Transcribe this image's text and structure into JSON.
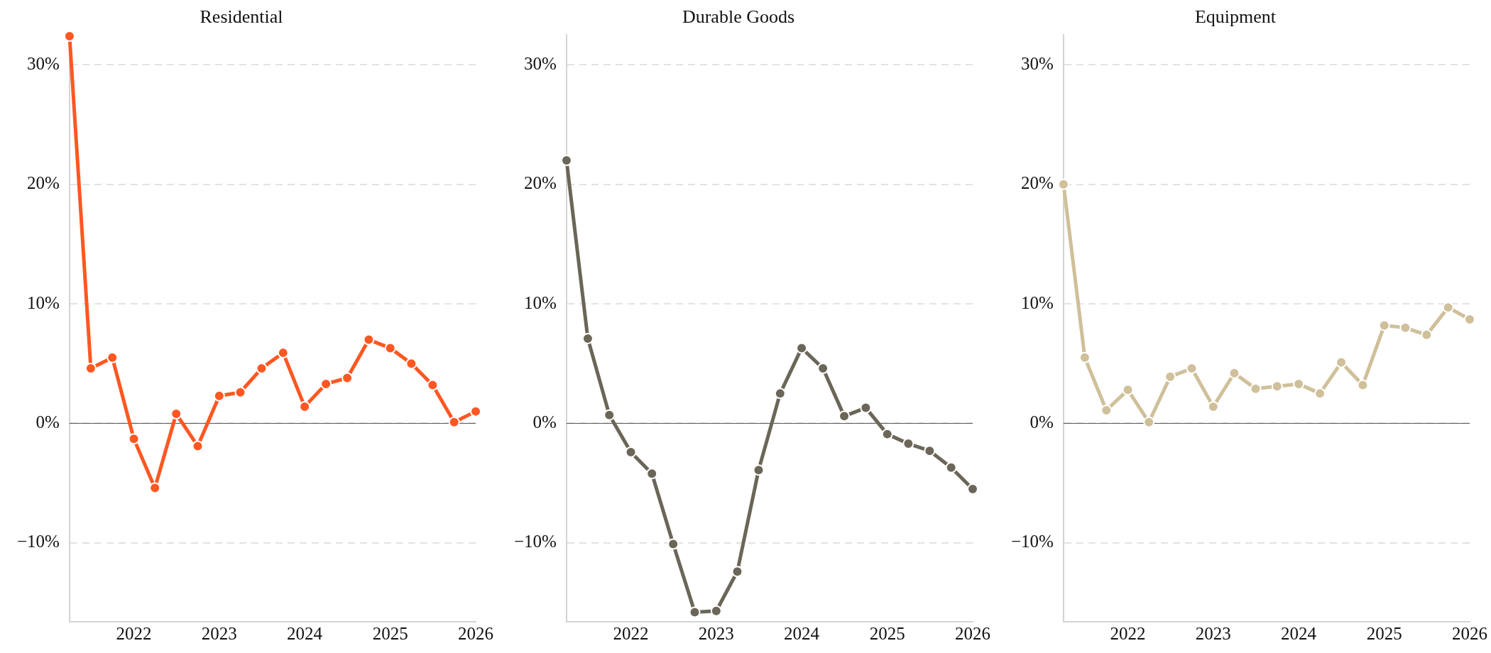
{
  "chart_data": [
    {
      "type": "line",
      "title": "Residential",
      "x": [
        "2021-04",
        "2021-07",
        "2021-10",
        "2022-01",
        "2022-04",
        "2022-07",
        "2022-10",
        "2023-01",
        "2023-04",
        "2023-07",
        "2023-10",
        "2024-01",
        "2024-04",
        "2024-07",
        "2024-10",
        "2025-01",
        "2025-04",
        "2025-07",
        "2025-10",
        "2026-01"
      ],
      "series": [
        {
          "color": "#ff5722",
          "values": [
            32.4,
            4.6,
            5.5,
            -1.3,
            -5.4,
            0.8,
            -1.9,
            2.3,
            2.6,
            4.6,
            5.9,
            1.4,
            3.3,
            3.8,
            7.0,
            6.3,
            5.0,
            3.2,
            0.1,
            1.0
          ]
        }
      ],
      "xlim": [
        "2021-04",
        "2026-01"
      ],
      "xticks": [
        "2022",
        "2023",
        "2024",
        "2025",
        "2026"
      ],
      "ylim": [
        -16.6,
        32.5
      ],
      "yticks": [
        {
          "value": -10,
          "label": "−10%"
        },
        {
          "value": 0,
          "label": "0%"
        },
        {
          "value": 10,
          "label": "10%"
        },
        {
          "value": 20,
          "label": "20%"
        },
        {
          "value": 30,
          "label": "30%"
        }
      ],
      "grid": "y",
      "marker": "circle",
      "line_style": "solid",
      "ref_lines": [
        {
          "axis": "y",
          "value": 0,
          "color": "#555555"
        }
      ]
    },
    {
      "type": "line",
      "title": "Durable Goods",
      "x": [
        "2021-04",
        "2021-07",
        "2021-10",
        "2022-01",
        "2022-04",
        "2022-07",
        "2022-10",
        "2023-01",
        "2023-04",
        "2023-07",
        "2023-10",
        "2024-01",
        "2024-04",
        "2024-07",
        "2024-10",
        "2025-01",
        "2025-04",
        "2025-07",
        "2025-10",
        "2026-01"
      ],
      "series": [
        {
          "color": "#6b6658",
          "values": [
            22.0,
            7.1,
            0.7,
            -2.4,
            -4.2,
            -10.1,
            -15.8,
            -15.7,
            -12.4,
            -3.9,
            2.5,
            6.3,
            4.6,
            0.6,
            1.3,
            -0.9,
            -1.7,
            -2.3,
            -3.7,
            -5.5
          ]
        }
      ],
      "xlim": [
        "2021-04",
        "2026-01"
      ],
      "xticks": [
        "2022",
        "2023",
        "2024",
        "2025",
        "2026"
      ],
      "ylim": [
        -16.6,
        32.5
      ],
      "yticks": [
        {
          "value": -10,
          "label": "−10%"
        },
        {
          "value": 0,
          "label": "0%"
        },
        {
          "value": 10,
          "label": "10%"
        },
        {
          "value": 20,
          "label": "20%"
        },
        {
          "value": 30,
          "label": "30%"
        }
      ],
      "grid": "y",
      "marker": "circle",
      "line_style": "solid",
      "ref_lines": [
        {
          "axis": "y",
          "value": 0,
          "color": "#555555"
        }
      ]
    },
    {
      "type": "line",
      "title": "Equipment",
      "x": [
        "2021-04",
        "2021-07",
        "2021-10",
        "2022-01",
        "2022-04",
        "2022-07",
        "2022-10",
        "2023-01",
        "2023-04",
        "2023-07",
        "2023-10",
        "2024-01",
        "2024-04",
        "2024-07",
        "2024-10",
        "2025-01",
        "2025-04",
        "2025-07",
        "2025-10",
        "2026-01"
      ],
      "series": [
        {
          "color": "#cfc09a",
          "values": [
            20.0,
            5.5,
            1.1,
            2.8,
            0.1,
            3.9,
            4.6,
            1.4,
            4.2,
            2.9,
            3.1,
            3.3,
            2.5,
            5.1,
            3.2,
            8.2,
            8.0,
            7.4,
            9.7,
            8.7
          ]
        }
      ],
      "xlim": [
        "2021-04",
        "2026-01"
      ],
      "xticks": [
        "2022",
        "2023",
        "2024",
        "2025",
        "2026"
      ],
      "ylim": [
        -16.6,
        32.5
      ],
      "yticks": [
        {
          "value": -10,
          "label": "−10%"
        },
        {
          "value": 0,
          "label": "0%"
        },
        {
          "value": 10,
          "label": "10%"
        },
        {
          "value": 20,
          "label": "20%"
        },
        {
          "value": 30,
          "label": "30%"
        }
      ],
      "grid": "y",
      "marker": "circle",
      "line_style": "solid",
      "ref_lines": [
        {
          "axis": "y",
          "value": 0,
          "color": "#555555"
        }
      ]
    }
  ]
}
